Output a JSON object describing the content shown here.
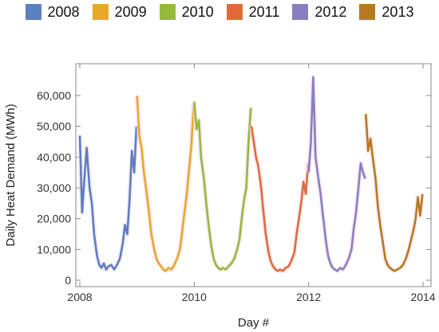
{
  "chart_data": {
    "type": "line",
    "title": "",
    "xlabel": "Day #",
    "ylabel": "Daily Heat Demand (MWh)",
    "xlim": [
      2008,
      2014
    ],
    "ylim": [
      0,
      70000
    ],
    "xticks": [
      {
        "value": 2008,
        "label": "2008"
      },
      {
        "value": 2010,
        "label": "2010"
      },
      {
        "value": 2012,
        "label": "2012"
      },
      {
        "value": 2014,
        "label": "2014"
      }
    ],
    "yticks": [
      {
        "value": 0,
        "label": "0"
      },
      {
        "value": 10000,
        "label": "10,000"
      },
      {
        "value": 20000,
        "label": "20,000"
      },
      {
        "value": 30000,
        "label": "30,000"
      },
      {
        "value": 40000,
        "label": "40,000"
      },
      {
        "value": 50000,
        "label": "50,000"
      },
      {
        "value": 60000,
        "label": "60,000"
      }
    ],
    "grid": false,
    "legend_position": "top",
    "series": [
      {
        "name": "2008",
        "color": "#5b7fbf",
        "x": [
          2008.0,
          2008.04,
          2008.08,
          2008.12,
          2008.17,
          2008.21,
          2008.25,
          2008.3,
          2008.34,
          2008.38,
          2008.42,
          2008.46,
          2008.5,
          2008.55,
          2008.6,
          2008.65,
          2008.7,
          2008.75,
          2008.79,
          2008.83,
          2008.87,
          2008.91,
          2008.95,
          2008.99
        ],
        "y": [
          47000,
          22000,
          33000,
          43000,
          30000,
          25000,
          15000,
          8000,
          5000,
          4000,
          5500,
          3500,
          4500,
          5000,
          3500,
          5000,
          7000,
          12000,
          18000,
          15000,
          26000,
          42000,
          35000,
          50000
        ]
      },
      {
        "name": "2009",
        "color": "#e8a82a",
        "x": [
          2009.0,
          2009.04,
          2009.08,
          2009.12,
          2009.17,
          2009.21,
          2009.25,
          2009.3,
          2009.34,
          2009.38,
          2009.42,
          2009.46,
          2009.5,
          2009.55,
          2009.6,
          2009.65,
          2009.7,
          2009.75,
          2009.79,
          2009.83,
          2009.87,
          2009.91,
          2009.95,
          2009.99
        ],
        "y": [
          60000,
          47000,
          43000,
          35000,
          28000,
          22000,
          15000,
          10000,
          7000,
          5500,
          4500,
          3500,
          3000,
          4000,
          3500,
          5000,
          7000,
          10000,
          16000,
          22000,
          28000,
          36000,
          44000,
          57000
        ]
      },
      {
        "name": "2010",
        "color": "#96b93a",
        "x": [
          2010.0,
          2010.04,
          2010.08,
          2010.12,
          2010.17,
          2010.21,
          2010.25,
          2010.3,
          2010.34,
          2010.38,
          2010.42,
          2010.46,
          2010.5,
          2010.55,
          2010.6,
          2010.65,
          2010.7,
          2010.75,
          2010.79,
          2010.83,
          2010.87,
          2010.91,
          2010.95,
          2010.99
        ],
        "y": [
          58000,
          49000,
          52000,
          40000,
          33000,
          25000,
          18000,
          11000,
          7000,
          5000,
          4000,
          3500,
          4000,
          3500,
          4500,
          5500,
          7000,
          10000,
          13000,
          20000,
          26000,
          30000,
          45000,
          56000
        ]
      },
      {
        "name": "2011",
        "color": "#e06b38",
        "x": [
          2011.0,
          2011.04,
          2011.08,
          2011.12,
          2011.17,
          2011.21,
          2011.25,
          2011.3,
          2011.34,
          2011.38,
          2011.42,
          2011.46,
          2011.5,
          2011.55,
          2011.6,
          2011.65,
          2011.7,
          2011.75,
          2011.79,
          2011.83,
          2011.87,
          2011.91,
          2011.95,
          2011.99
        ],
        "y": [
          50000,
          45000,
          40000,
          37000,
          30000,
          22000,
          15000,
          9000,
          6000,
          4500,
          3500,
          3000,
          3500,
          3000,
          4000,
          4500,
          6500,
          9000,
          15000,
          20000,
          25000,
          32000,
          28000,
          38000
        ]
      },
      {
        "name": "2012",
        "color": "#8a7ec0",
        "x": [
          2012.0,
          2012.04,
          2012.08,
          2012.12,
          2012.17,
          2012.21,
          2012.25,
          2012.3,
          2012.34,
          2012.38,
          2012.42,
          2012.46,
          2012.5,
          2012.55,
          2012.6,
          2012.65,
          2012.7,
          2012.75,
          2012.79,
          2012.83,
          2012.87,
          2012.91,
          2012.95,
          2012.99
        ],
        "y": [
          35000,
          45000,
          66000,
          40000,
          33000,
          28000,
          21000,
          13000,
          8000,
          5500,
          4000,
          3500,
          3000,
          4000,
          3500,
          5000,
          7000,
          10000,
          17000,
          22000,
          30000,
          38000,
          35000,
          33000
        ]
      },
      {
        "name": "2013",
        "color": "#b8791e",
        "x": [
          2013.0,
          2013.04,
          2013.08,
          2013.12,
          2013.17,
          2013.21,
          2013.25,
          2013.3,
          2013.34,
          2013.38,
          2013.42,
          2013.46,
          2013.5,
          2013.55,
          2013.6,
          2013.65,
          2013.7,
          2013.75,
          2013.79,
          2013.83,
          2013.87,
          2013.91,
          2013.95,
          2013.99
        ],
        "y": [
          54000,
          42000,
          46000,
          40000,
          33000,
          24000,
          18000,
          12000,
          7000,
          5000,
          4000,
          3500,
          3000,
          3500,
          4000,
          5000,
          7000,
          10000,
          13000,
          16000,
          20000,
          27000,
          21000,
          28000
        ]
      }
    ]
  }
}
